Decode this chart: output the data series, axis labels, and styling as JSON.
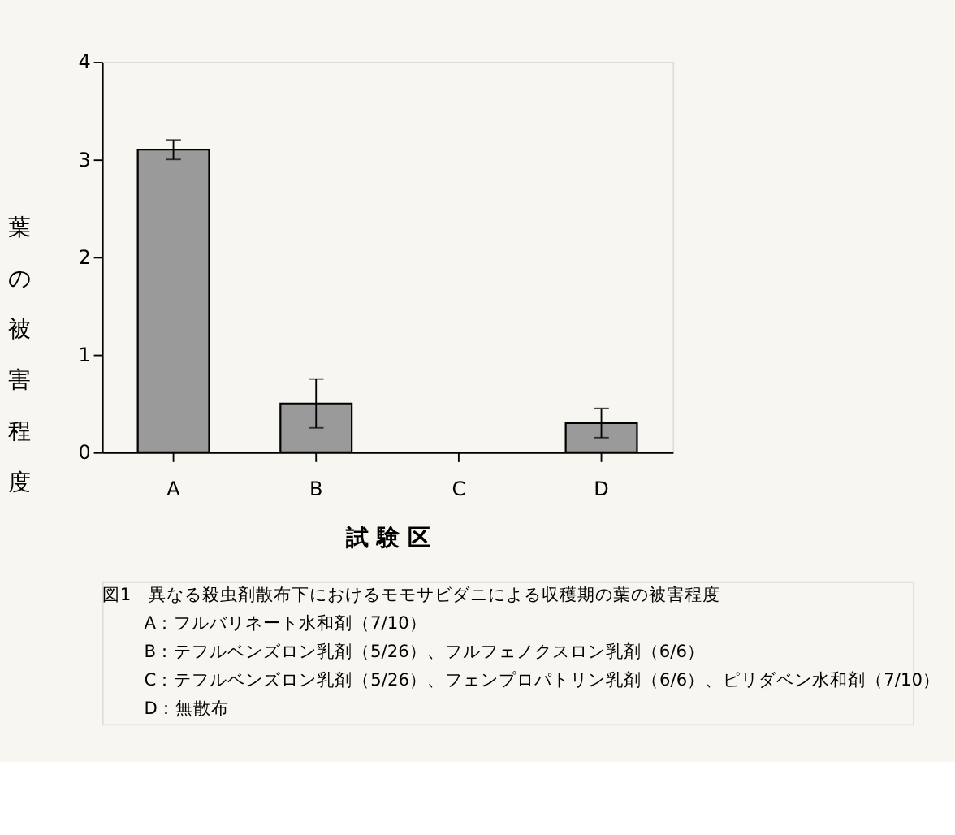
{
  "chart_data": {
    "type": "bar",
    "xlabel": "試 験 区",
    "ylabel": "葉の被害程度",
    "categories": [
      "A",
      "B",
      "C",
      "D"
    ],
    "values": [
      3.1,
      0.5,
      0,
      0.3
    ],
    "errors": [
      0.1,
      0.25,
      null,
      0.15
    ],
    "color": "#9a9a9a",
    "ylim": [
      0,
      4
    ],
    "yticks": [
      0,
      1,
      2,
      3,
      4
    ],
    "grid": false,
    "annotations": [
      "図1　異なる殺虫剤散布下におけるモモサビダニによる収穫期の葉の被害程度",
      "A：フルバリネート水和剤（7/10）",
      "B：テフルベンズロン乳剤（5/26）、フルフェノクスロン乳剤（6/6）",
      "C：テフルベンズロン乳剤（5/26）、フェンプロパトリン乳剤（6/6）、ピリダベン水和剤（7/10）",
      "D：無散布"
    ]
  }
}
